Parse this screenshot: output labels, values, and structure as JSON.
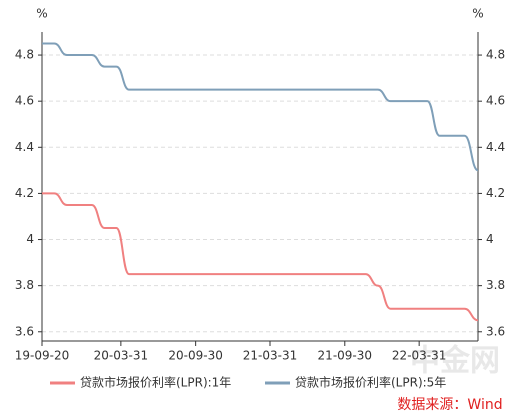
{
  "chart_data": {
    "type": "line",
    "unit_left": "%",
    "unit_right": "%",
    "x": [
      "2019-09-20",
      "2019-10-20",
      "2019-11-20",
      "2019-12-20",
      "2020-01-20",
      "2020-02-20",
      "2020-03-20",
      "2020-04-20",
      "2020-05-20",
      "2020-06-20",
      "2020-07-20",
      "2020-08-20",
      "2020-09-20",
      "2020-10-20",
      "2020-11-20",
      "2020-12-20",
      "2021-01-20",
      "2021-02-20",
      "2021-03-20",
      "2021-04-20",
      "2021-05-20",
      "2021-06-20",
      "2021-07-20",
      "2021-08-20",
      "2021-09-20",
      "2021-10-20",
      "2021-11-20",
      "2021-12-20",
      "2022-01-20",
      "2022-02-20",
      "2022-03-20",
      "2022-04-20",
      "2022-05-20",
      "2022-06-20",
      "2022-07-20",
      "2022-08-22"
    ],
    "series": [
      {
        "name": "贷款市场报价利率(LPR):1年",
        "color": "#f08080",
        "axis": "y",
        "values": [
          4.2,
          4.2,
          4.15,
          4.15,
          4.15,
          4.05,
          4.05,
          3.85,
          3.85,
          3.85,
          3.85,
          3.85,
          3.85,
          3.85,
          3.85,
          3.85,
          3.85,
          3.85,
          3.85,
          3.85,
          3.85,
          3.85,
          3.85,
          3.85,
          3.85,
          3.85,
          3.85,
          3.8,
          3.7,
          3.7,
          3.7,
          3.7,
          3.7,
          3.7,
          3.7,
          3.65
        ]
      },
      {
        "name": "贷款市场报价利率(LPR):5年",
        "color": "#7f9fb8",
        "axis": "y2",
        "values": [
          4.85,
          4.85,
          4.8,
          4.8,
          4.8,
          4.75,
          4.75,
          4.65,
          4.65,
          4.65,
          4.65,
          4.65,
          4.65,
          4.65,
          4.65,
          4.65,
          4.65,
          4.65,
          4.65,
          4.65,
          4.65,
          4.65,
          4.65,
          4.65,
          4.65,
          4.65,
          4.65,
          4.65,
          4.6,
          4.6,
          4.6,
          4.6,
          4.45,
          4.45,
          4.45,
          4.3
        ]
      }
    ],
    "xlim": [
      "2019-09-20",
      "2022-08-22"
    ],
    "xticks": [
      {
        "value": "2019-09-20",
        "label": "19-09-20"
      },
      {
        "value": "2020-03-31",
        "label": "20-03-31"
      },
      {
        "value": "2020-09-30",
        "label": "20-09-30"
      },
      {
        "value": "2021-03-31",
        "label": "21-03-31"
      },
      {
        "value": "2021-09-30",
        "label": "21-09-30"
      },
      {
        "value": "2022-03-31",
        "label": "22-03-31"
      }
    ],
    "ylim": [
      3.56,
      4.9
    ],
    "yticks": [
      3.6,
      3.8,
      4,
      4.2,
      4.4,
      4.6,
      4.8
    ],
    "y2lim": [
      3.56,
      4.9
    ],
    "y2ticks": [
      3.6,
      3.8,
      4,
      4.2,
      4.4,
      4.6,
      4.8
    ],
    "grid": true,
    "legend": "bottom",
    "watermark": "中金网",
    "source": "数据来源：Wind"
  }
}
